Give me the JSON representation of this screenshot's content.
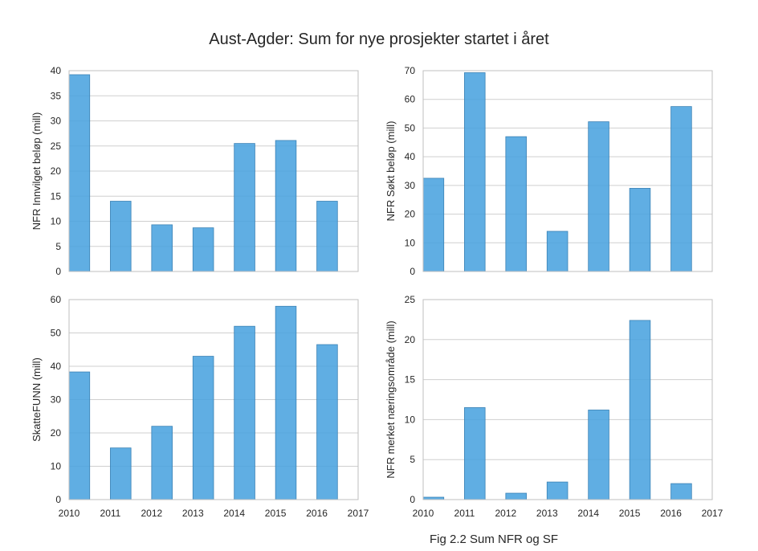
{
  "figure": {
    "title": "Aust-Agder: Sum for nye prosjekter startet i året",
    "caption": "Fig 2.2 Sum NFR og SF"
  },
  "chart_data": [
    {
      "type": "bar",
      "position": "top-left",
      "ylabel": "NFR Innvilget beløp (mill)",
      "xlim": [
        2010,
        2017
      ],
      "ylim": [
        0,
        40
      ],
      "yticks": [
        0,
        5,
        10,
        15,
        20,
        25,
        30,
        35,
        40
      ],
      "xticks": [],
      "categories": [
        2010,
        2011,
        2012,
        2013,
        2014,
        2015,
        2016
      ],
      "values": [
        39.2,
        14.0,
        9.3,
        8.7,
        25.5,
        26.1,
        14.0
      ],
      "grid": true,
      "color": "#4aa3df"
    },
    {
      "type": "bar",
      "position": "top-right",
      "ylabel": "NFR Søkt beløp (mill)",
      "xlim": [
        2010,
        2017
      ],
      "ylim": [
        0,
        70
      ],
      "yticks": [
        0,
        10,
        20,
        30,
        40,
        50,
        60,
        70
      ],
      "xticks": [],
      "categories": [
        2010,
        2011,
        2012,
        2013,
        2014,
        2015,
        2016
      ],
      "values": [
        32.5,
        69.3,
        47.0,
        14.0,
        52.2,
        29.0,
        57.5
      ],
      "grid": true,
      "color": "#4aa3df"
    },
    {
      "type": "bar",
      "position": "bottom-left",
      "ylabel": "SkatteFUNN (mill)",
      "xlim": [
        2010,
        2017
      ],
      "ylim": [
        0,
        60
      ],
      "yticks": [
        0,
        10,
        20,
        30,
        40,
        50,
        60
      ],
      "xticks": [
        2010,
        2011,
        2012,
        2013,
        2014,
        2015,
        2016,
        2017
      ],
      "categories": [
        2010,
        2011,
        2012,
        2013,
        2014,
        2015,
        2016
      ],
      "values": [
        38.3,
        15.5,
        22.0,
        43.0,
        52.0,
        58.0,
        46.5
      ],
      "grid": true,
      "color": "#4aa3df"
    },
    {
      "type": "bar",
      "position": "bottom-right",
      "ylabel": "NFR merket næringsområde (mill)",
      "xlim": [
        2010,
        2017
      ],
      "ylim": [
        0,
        25
      ],
      "yticks": [
        0,
        5,
        10,
        15,
        20,
        25
      ],
      "xticks": [
        2010,
        2011,
        2012,
        2013,
        2014,
        2015,
        2016,
        2017
      ],
      "categories": [
        2010,
        2011,
        2012,
        2013,
        2014,
        2015,
        2016
      ],
      "values": [
        0.3,
        11.5,
        0.8,
        2.2,
        11.2,
        22.4,
        2.0
      ],
      "grid": true,
      "color": "#4aa3df"
    }
  ]
}
